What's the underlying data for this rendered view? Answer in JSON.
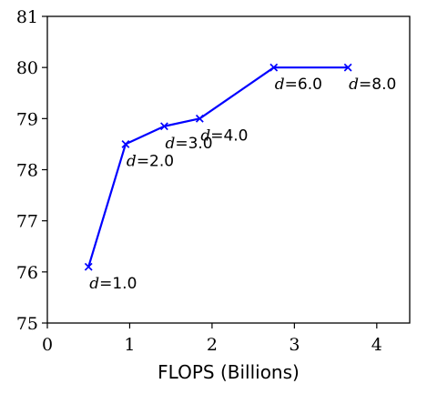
{
  "chart_data": {
    "type": "line",
    "title": "",
    "xlabel": "FLOPS (Billions)",
    "ylabel": "",
    "xlim": [
      0,
      4.4
    ],
    "ylim": [
      75,
      81
    ],
    "xticks": [
      "0",
      "1",
      "2",
      "3",
      "4"
    ],
    "yticks": [
      "75",
      "76",
      "77",
      "78",
      "79",
      "80",
      "81"
    ],
    "grid": false,
    "line_color": "#0000ff",
    "marker": "x",
    "series": [
      {
        "x": [
          0.5,
          0.95,
          1.42,
          1.85,
          2.75,
          3.65
        ],
        "y": [
          76.1,
          78.5,
          78.85,
          79.0,
          80.0,
          80.0
        ],
        "labels": [
          {
            "var": "d",
            "rest": "=1.0"
          },
          {
            "var": "d",
            "rest": "=2.0"
          },
          {
            "var": "d",
            "rest": "=3.0"
          },
          {
            "var": "d",
            "rest": "=4.0"
          },
          {
            "var": "d",
            "rest": "=6.0"
          },
          {
            "var": "d",
            "rest": "=8.0"
          }
        ]
      }
    ]
  }
}
